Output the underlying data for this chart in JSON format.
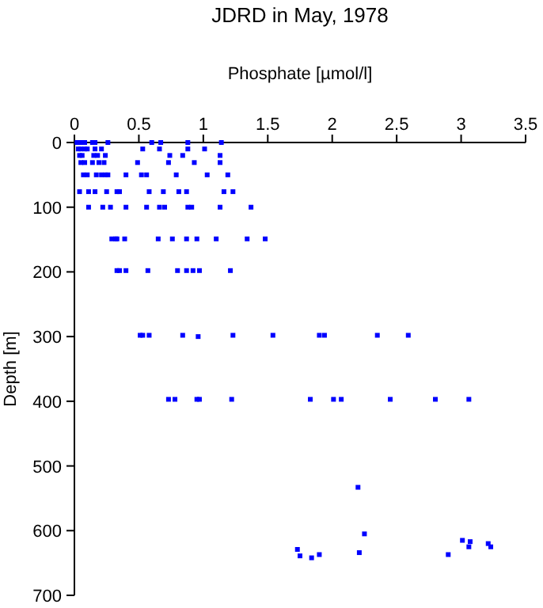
{
  "chart_data": {
    "type": "scatter",
    "title": "JDRD in May, 1978",
    "xlabel": "Phosphate [µmol/l]",
    "ylabel": "Depth [m]",
    "xlim": [
      0,
      3.5
    ],
    "xticks": [
      0,
      0.5,
      1,
      1.5,
      2,
      2.5,
      3,
      3.5
    ],
    "ylim": [
      700,
      0
    ],
    "yticks": [
      0,
      100,
      200,
      300,
      400,
      500,
      600,
      700
    ],
    "grid": false,
    "marker": "square",
    "series": [
      {
        "color": "#0000ff",
        "x": [
          0.02,
          0.04,
          0.06,
          0.08,
          0.14,
          0.16,
          0.26,
          0.6,
          0.67,
          0.88,
          1.14,
          0.03,
          0.05,
          0.08,
          0.1,
          0.16,
          0.21,
          0.53,
          0.66,
          0.88,
          1.01,
          0.04,
          0.06,
          0.15,
          0.18,
          0.24,
          0.74,
          0.84,
          1.13,
          0.05,
          0.08,
          0.14,
          0.19,
          0.23,
          0.49,
          0.73,
          0.93,
          1.13,
          0.07,
          0.1,
          0.17,
          0.21,
          0.24,
          0.26,
          0.4,
          0.52,
          0.56,
          0.79,
          1.03,
          1.19,
          0.04,
          0.11,
          0.16,
          0.25,
          0.33,
          0.35,
          0.58,
          0.69,
          0.81,
          0.87,
          1.16,
          1.23,
          0.11,
          0.22,
          0.28,
          0.4,
          0.56,
          0.66,
          0.7,
          0.88,
          0.91,
          1.13,
          1.37,
          0.29,
          0.32,
          0.33,
          0.39,
          0.65,
          0.76,
          0.87,
          0.95,
          1.1,
          1.34,
          1.48,
          0.33,
          0.35,
          0.4,
          0.57,
          0.8,
          0.87,
          0.92,
          0.97,
          1.21,
          0.51,
          0.53,
          0.58,
          0.84,
          0.96,
          1.23,
          1.54,
          1.9,
          1.94,
          2.35,
          2.59,
          0.73,
          0.78,
          0.95,
          0.97,
          1.22,
          1.83,
          2.01,
          2.07,
          2.45,
          2.8,
          3.06,
          2.2,
          1.73,
          1.75,
          1.84,
          1.9,
          2.21,
          2.25,
          2.9,
          3.01,
          3.06,
          3.07,
          3.21,
          3.23
        ],
        "values": [
          0,
          0,
          0,
          0,
          0,
          0,
          0,
          0,
          0,
          0,
          0,
          10,
          10,
          10,
          10,
          10,
          10,
          10,
          10,
          10,
          10,
          20,
          20,
          20,
          20,
          20,
          20,
          20,
          20,
          31,
          31,
          31,
          31,
          31,
          31,
          31,
          31,
          31,
          50,
          50,
          50,
          50,
          50,
          50,
          50,
          50,
          50,
          50,
          50,
          50,
          76,
          76,
          76,
          76,
          76,
          76,
          76,
          76,
          76,
          76,
          76,
          76,
          100,
          100,
          100,
          100,
          100,
          100,
          100,
          100,
          100,
          100,
          100,
          149,
          149,
          149,
          149,
          149,
          149,
          149,
          149,
          149,
          149,
          149,
          198,
          198,
          198,
          198,
          198,
          198,
          198,
          198,
          198,
          298,
          298,
          298,
          298,
          300,
          298,
          298,
          298,
          298,
          298,
          298,
          397,
          397,
          397,
          397,
          397,
          397,
          397,
          397,
          397,
          397,
          397,
          533,
          629,
          639,
          642,
          637,
          634,
          605,
          637,
          615,
          625,
          617,
          620,
          625
        ]
      }
    ]
  }
}
